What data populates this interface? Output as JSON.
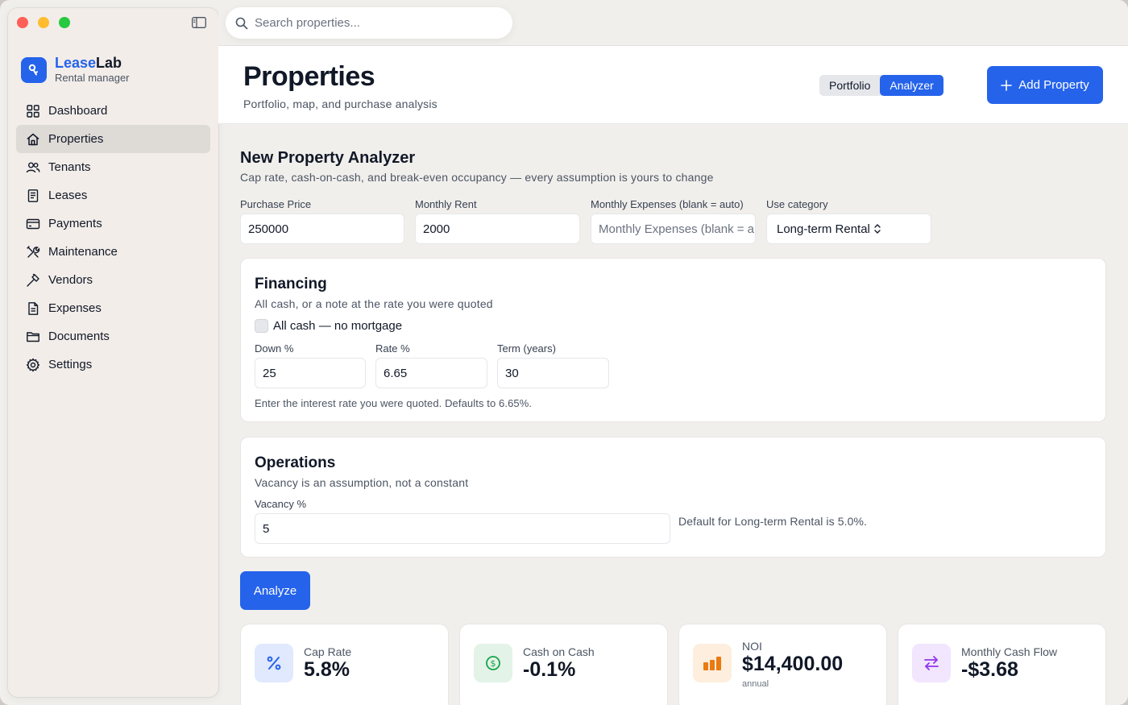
{
  "app": {
    "brand_first": "Lease",
    "brand_second": "Lab",
    "brand_sub": "Rental manager"
  },
  "colors": {
    "accent": "#2563eb",
    "traffic_red": "#fe5f57",
    "traffic_yellow": "#febc2e",
    "traffic_green": "#28c840"
  },
  "sidebar": {
    "items": [
      {
        "label": "Dashboard",
        "icon": "grid-icon"
      },
      {
        "label": "Properties",
        "icon": "house-icon",
        "active": true
      },
      {
        "label": "Tenants",
        "icon": "people-icon"
      },
      {
        "label": "Leases",
        "icon": "document-icon"
      },
      {
        "label": "Payments",
        "icon": "credit-card-icon"
      },
      {
        "label": "Maintenance",
        "icon": "tools-icon"
      },
      {
        "label": "Vendors",
        "icon": "hammer-icon"
      },
      {
        "label": "Expenses",
        "icon": "receipt-icon"
      },
      {
        "label": "Documents",
        "icon": "folder-icon"
      },
      {
        "label": "Settings",
        "icon": "gear-icon"
      }
    ]
  },
  "search": {
    "placeholder": "Search properties..."
  },
  "header": {
    "title": "Properties",
    "subtitle": "Portfolio, map, and purchase analysis",
    "tabs": [
      {
        "label": "Portfolio",
        "active": false
      },
      {
        "label": "Analyzer",
        "active": true
      }
    ],
    "add_button": "Add Property"
  },
  "analyzer": {
    "title": "New Property Analyzer",
    "subtitle": "Cap rate, cash-on-cash, and break-even occupancy — every assumption is yours to change",
    "purchase_price_label": "Purchase Price",
    "purchase_price_value": "250000",
    "monthly_rent_label": "Monthly Rent",
    "monthly_rent_value": "2000",
    "monthly_expenses_label": "Monthly Expenses (blank = auto)",
    "monthly_expenses_placeholder": "Monthly Expenses (blank = auto)",
    "use_category_label": "Use category",
    "use_category_value": "Long-term Rental"
  },
  "financing": {
    "title": "Financing",
    "subtitle": "All cash, or a note at the rate you were quoted",
    "all_cash_label": "All cash — no mortgage",
    "all_cash_checked": false,
    "down_label": "Down %",
    "down_value": "25",
    "rate_label": "Rate %",
    "rate_value": "6.65",
    "term_label": "Term (years)",
    "term_value": "30",
    "hint": "Enter the interest rate you were quoted. Defaults to 6.65%."
  },
  "operations": {
    "title": "Operations",
    "subtitle": "Vacancy is an assumption, not a constant",
    "vacancy_label": "Vacancy %",
    "vacancy_value": "5",
    "hint": "Default for Long-term Rental is 5.0%."
  },
  "analyze_button": "Analyze",
  "metrics": [
    {
      "label": "Cap Rate",
      "value": "5.8%",
      "icon": "percent-icon",
      "color": "#2563eb",
      "bg": "#e0e9fd"
    },
    {
      "label": "Cash on Cash",
      "value": "-0.1%",
      "icon": "dollar-circle-icon",
      "color": "#16a34a",
      "bg": "#e3f3e8"
    },
    {
      "label": "NOI",
      "value": "$14,400.00",
      "foot": "annual",
      "icon": "bar-chart-icon",
      "color": "#ea7a12",
      "bg": "#fdeedd"
    },
    {
      "label": "Monthly Cash Flow",
      "value": "-$3.68",
      "icon": "arrows-swap-icon",
      "color": "#9333ea",
      "bg": "#f1e6fd"
    }
  ]
}
